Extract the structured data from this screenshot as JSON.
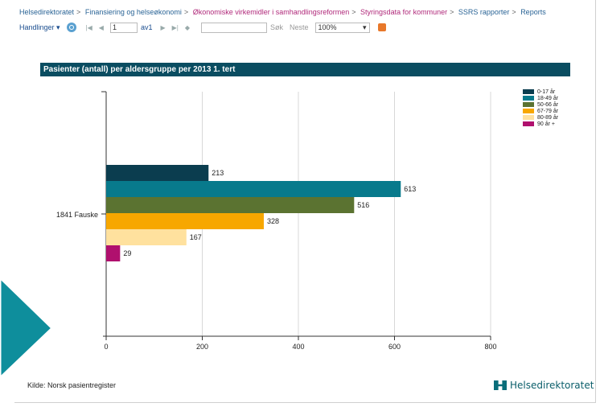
{
  "breadcrumb": [
    {
      "label": "Helsedirektoratet"
    },
    {
      "label": "Finansiering og helseøkonomi"
    },
    {
      "label": "Økonomiske virkemidler i samhandlingsreformen"
    },
    {
      "label": "Styringsdata for kommuner"
    },
    {
      "label": "SSRS rapporter"
    },
    {
      "label": "Reports"
    }
  ],
  "toolbar": {
    "actions_label": "Handlinger ▾",
    "page_value": "1",
    "page_of": "av1",
    "find_label": "Søk",
    "next_label": "Neste",
    "zoom_value": "100%",
    "first_icon": "first-page-icon",
    "prev_icon": "previous-page-icon",
    "next_icon": "next-page-icon",
    "last_icon": "last-page-icon",
    "refresh_icon": "refresh-icon",
    "export_icon": "export-icon"
  },
  "chart_title": "Pasienter (antall) per aldersgruppe per 2013 1. tert",
  "chart_data": {
    "type": "bar",
    "orientation": "horizontal",
    "title": "Pasienter (antall) per aldersgruppe per 2013 1. tert",
    "categories": [
      "1841 Fauske"
    ],
    "series": [
      {
        "name": "0-17 år",
        "values": [
          213
        ],
        "color": "#0b3d4f"
      },
      {
        "name": "18-49 år",
        "values": [
          613
        ],
        "color": "#087a8c"
      },
      {
        "name": "50-66 år",
        "values": [
          516
        ],
        "color": "#5b7331"
      },
      {
        "name": "67-79 år",
        "values": [
          328
        ],
        "color": "#f7a700"
      },
      {
        "name": "80-89 år",
        "values": [
          167
        ],
        "color": "#ffe19e"
      },
      {
        "name": "90 år +",
        "values": [
          29
        ],
        "color": "#b0106e"
      }
    ],
    "xlim": [
      0,
      800
    ],
    "x_ticks": [
      "0",
      "200",
      "400",
      "600",
      "800"
    ],
    "grid": true,
    "legend_position": "top-right"
  },
  "footer": {
    "source": "Kilde: Norsk pasientregister",
    "logo_text": "Helsedirektoratet"
  }
}
